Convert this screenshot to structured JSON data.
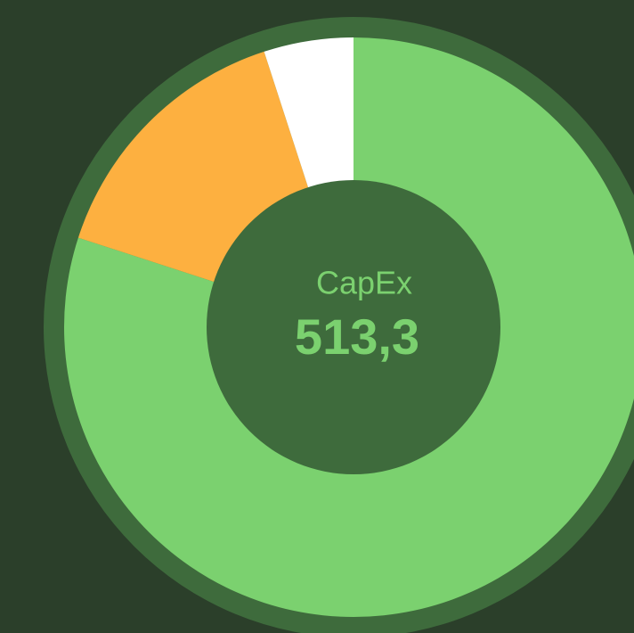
{
  "chart_data": {
    "type": "donut",
    "values": [
      80,
      15,
      5
    ],
    "colors": [
      "#7bd16f",
      "#fdb040",
      "#ffffff"
    ],
    "center_label": "CapEx",
    "center_value": "513,3"
  }
}
